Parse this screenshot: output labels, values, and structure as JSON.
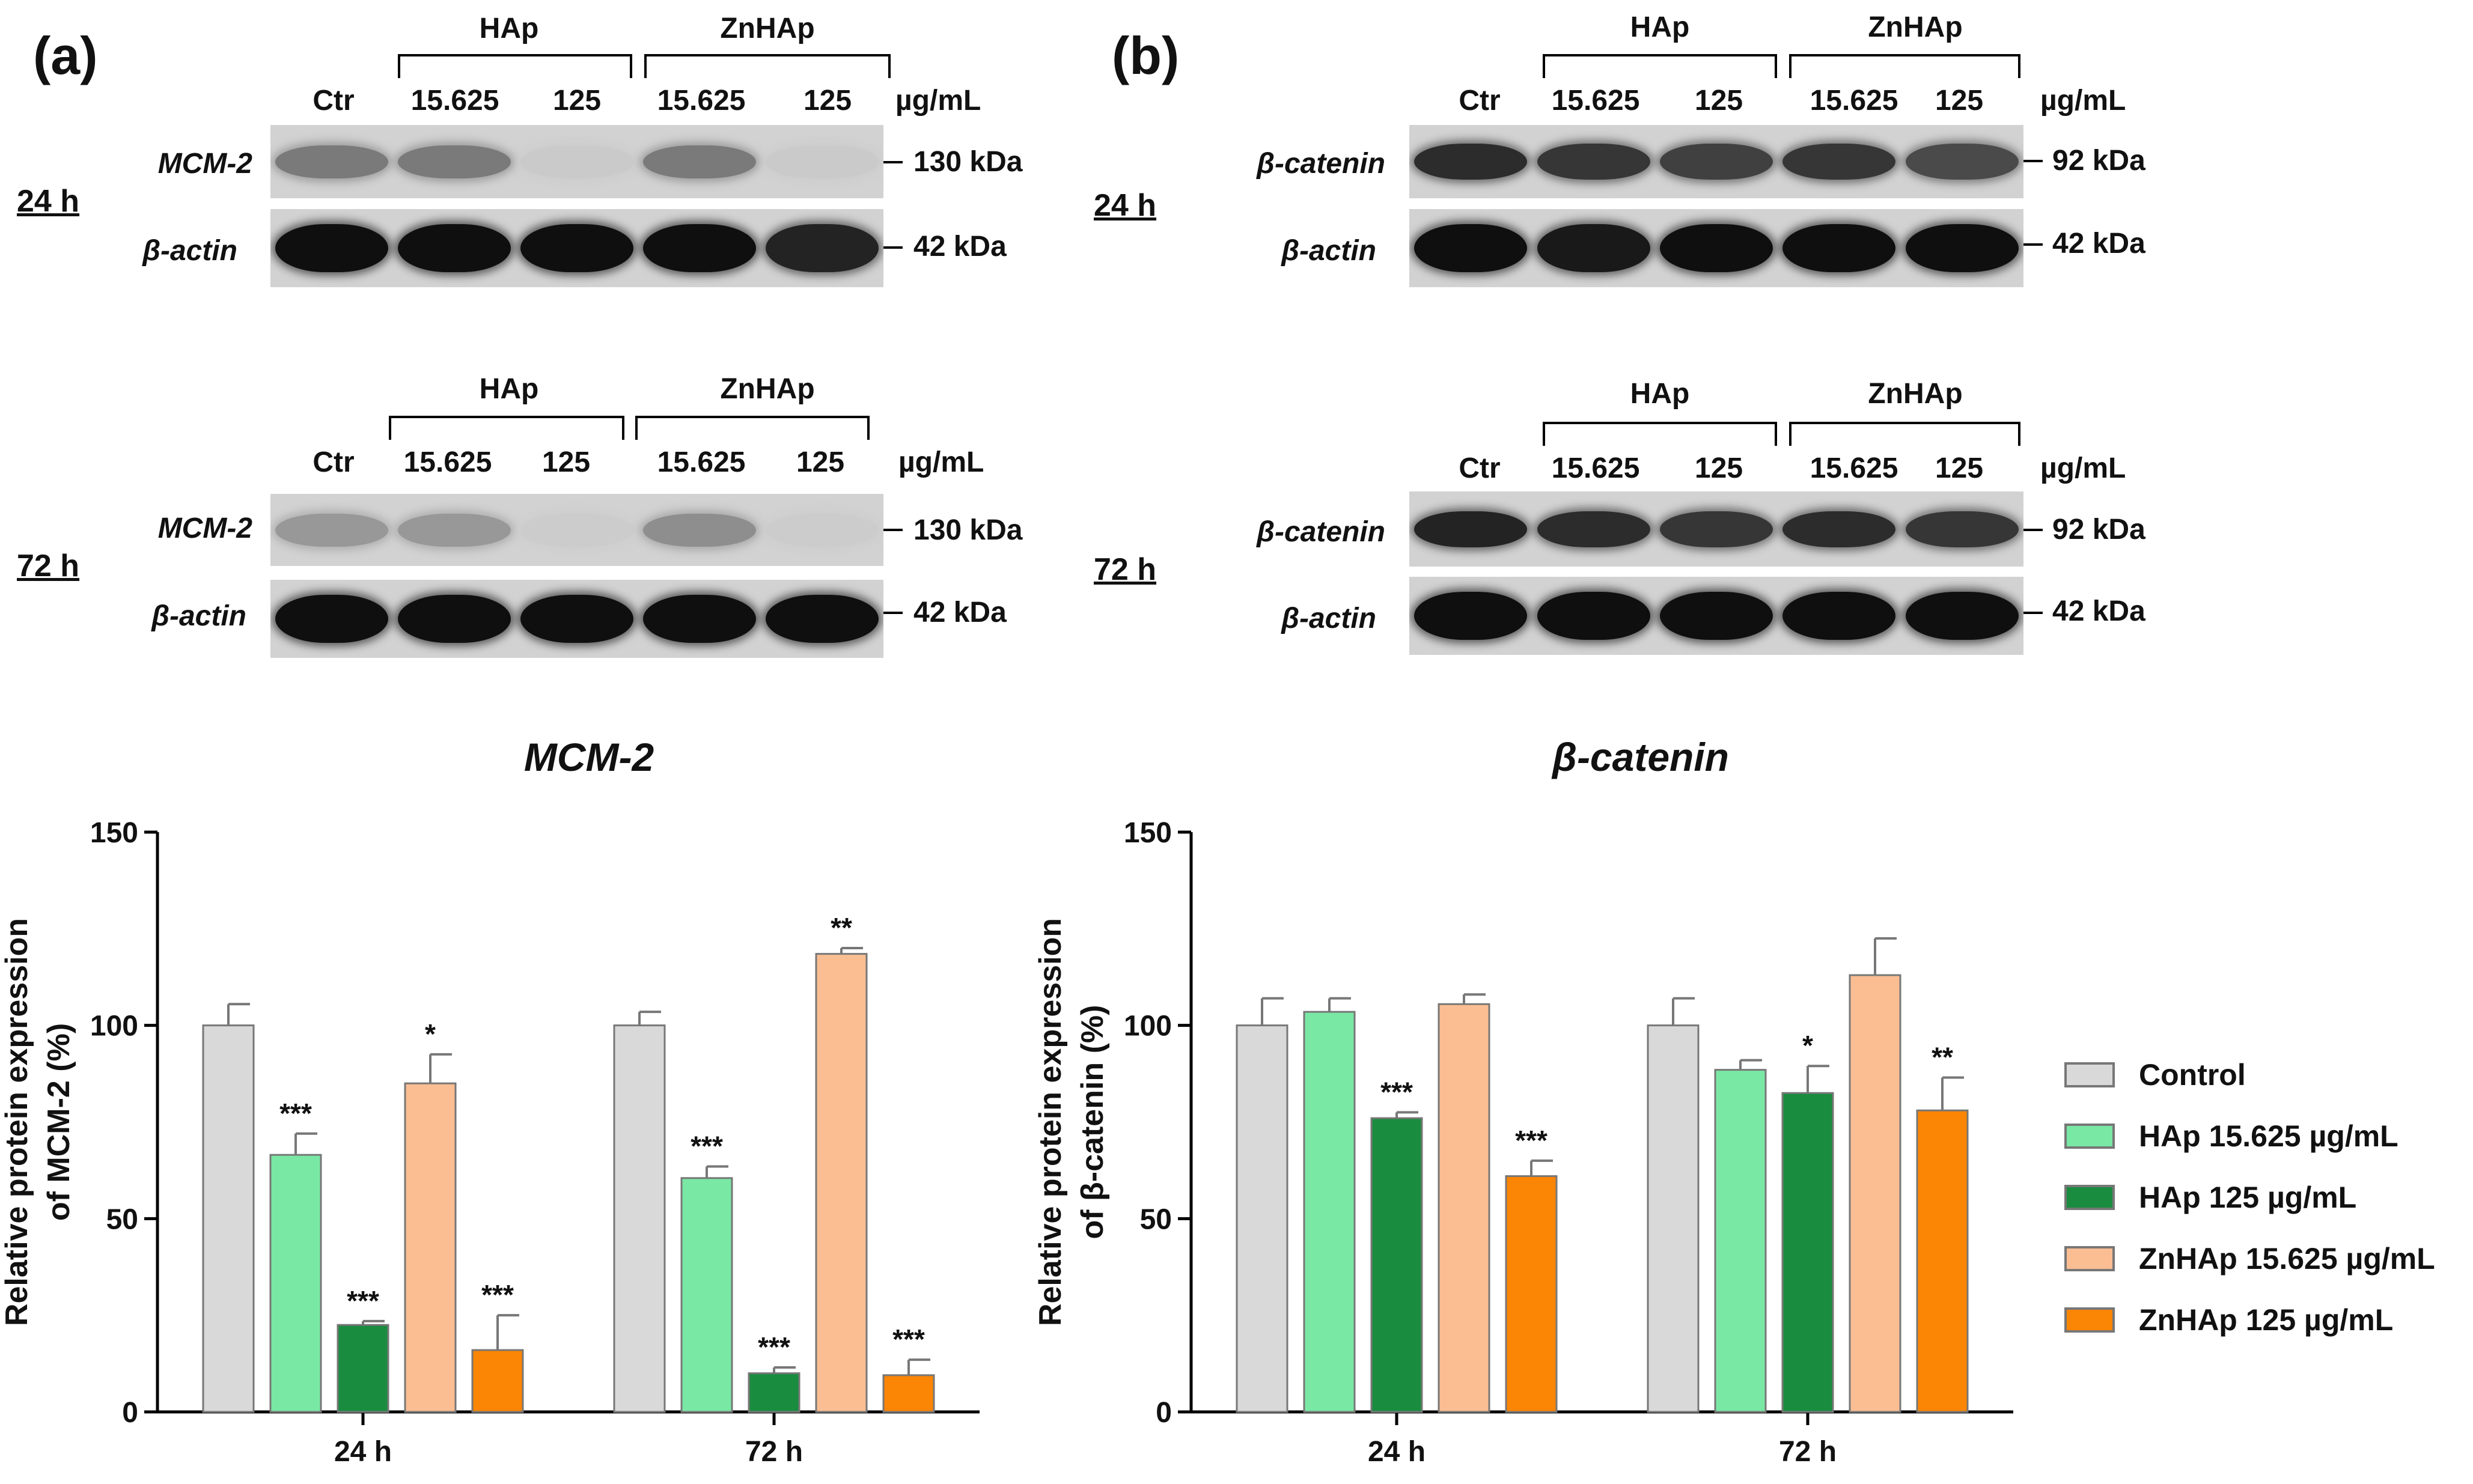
{
  "panels": [
    {
      "label": "(a)",
      "lane_labels": [
        "Ctr",
        "15.625",
        "125",
        "15.625",
        "125"
      ],
      "groups": [
        "HAp",
        "ZnHAp"
      ],
      "unit": "µg/mL",
      "blot_sets": [
        {
          "time": "24 h",
          "target": "MCM-2",
          "target_kda": "130 kDa",
          "loading": "β-actin",
          "loading_kda": "42 kDa",
          "target_intensity": [
            0.45,
            0.45,
            0.04,
            0.45,
            0.04
          ],
          "loading_intensity": [
            1.0,
            1.0,
            1.0,
            1.0,
            0.9
          ]
        },
        {
          "time": "72 h",
          "target": "MCM-2",
          "target_kda": "130 kDa",
          "loading": "β-actin",
          "loading_kda": "42 kDa",
          "target_intensity": [
            0.3,
            0.3,
            0.03,
            0.35,
            0.03
          ],
          "loading_intensity": [
            1.0,
            1.0,
            1.0,
            1.0,
            1.0
          ]
        }
      ]
    },
    {
      "label": "(b)",
      "lane_labels": [
        "Ctr",
        "15.625",
        "125",
        "15.625",
        "125"
      ],
      "groups": [
        "HAp",
        "ZnHAp"
      ],
      "unit": "µg/mL",
      "blot_sets": [
        {
          "time": "24 h",
          "target": "β-catenin",
          "target_kda": "92 kDa",
          "loading": "β-actin",
          "loading_kda": "42 kDa",
          "target_intensity": [
            0.85,
            0.8,
            0.75,
            0.8,
            0.7
          ],
          "loading_intensity": [
            1.0,
            0.95,
            1.0,
            1.0,
            1.0
          ]
        },
        {
          "time": "72 h",
          "target": "β-catenin",
          "target_kda": "92 kDa",
          "loading": "β-actin",
          "loading_kda": "42 kDa",
          "target_intensity": [
            0.9,
            0.85,
            0.8,
            0.85,
            0.8
          ],
          "loading_intensity": [
            1.0,
            1.0,
            1.0,
            1.0,
            1.0
          ]
        }
      ]
    }
  ],
  "chart_data": [
    {
      "type": "bar",
      "title": "MCM-2",
      "ylabel_lines": [
        "Relative protein expression",
        "of MCM-2 (%)"
      ],
      "xlabel": "",
      "categories": [
        "24 h",
        "72 h"
      ],
      "ylim": [
        0,
        150
      ],
      "yticks": [
        0,
        50,
        100,
        150
      ],
      "series": [
        {
          "name": "Control",
          "values": [
            100,
            100
          ],
          "errors": [
            5.5,
            3.5
          ],
          "sig": [
            "",
            ""
          ]
        },
        {
          "name": "HAp 15.625 µg/mL",
          "values": [
            66.5,
            60.5
          ],
          "errors": [
            5.5,
            3
          ],
          "sig": [
            "***",
            "***"
          ]
        },
        {
          "name": "HAp 125 µg/mL",
          "values": [
            22.5,
            10
          ],
          "errors": [
            1,
            1.5
          ],
          "sig": [
            "***",
            "***"
          ]
        },
        {
          "name": "ZnHAp 15.625 µg/mL",
          "values": [
            85,
            118.5
          ],
          "errors": [
            7.5,
            1.5
          ],
          "sig": [
            "*",
            "**"
          ]
        },
        {
          "name": "ZnHAp 125 µg/mL",
          "values": [
            16,
            9.5
          ],
          "errors": [
            9,
            4
          ],
          "sig": [
            "***",
            "***"
          ]
        }
      ]
    },
    {
      "type": "bar",
      "title": "β-catenin",
      "ylabel_lines": [
        "Relative protein expression",
        "of β-catenin (%)"
      ],
      "xlabel": "",
      "categories": [
        "24 h",
        "72 h"
      ],
      "ylim": [
        0,
        150
      ],
      "yticks": [
        0,
        50,
        100,
        150
      ],
      "series": [
        {
          "name": "Control",
          "values": [
            100,
            100
          ],
          "errors": [
            7,
            7
          ],
          "sig": [
            "",
            ""
          ]
        },
        {
          "name": "HAp 15.625 µg/mL",
          "values": [
            103.5,
            88.5
          ],
          "errors": [
            3.5,
            2.5
          ],
          "sig": [
            "",
            ""
          ]
        },
        {
          "name": "HAp 125 µg/mL",
          "values": [
            76,
            82.5
          ],
          "errors": [
            1.5,
            7
          ],
          "sig": [
            "***",
            "*"
          ]
        },
        {
          "name": "ZnHAp 15.625 µg/mL",
          "values": [
            105.5,
            113
          ],
          "errors": [
            2.5,
            9.5
          ],
          "sig": [
            "",
            ""
          ]
        },
        {
          "name": "ZnHAp 125 µg/mL",
          "values": [
            61,
            78
          ],
          "errors": [
            4,
            8.5
          ],
          "sig": [
            "***",
            "**"
          ]
        }
      ]
    }
  ],
  "legend": [
    {
      "label": "Control",
      "color": "#d9d9d9"
    },
    {
      "label": "HAp 15.625 µg/mL",
      "color": "#7ae8a5"
    },
    {
      "label": "HAp 125 µg/mL",
      "color": "#1a8c3f"
    },
    {
      "label": "ZnHAp 15.625 µg/mL",
      "color": "#fbbe93"
    },
    {
      "label": "ZnHAp 125 µg/mL",
      "color": "#fb8504"
    }
  ],
  "colors": {
    "axis": "#000000",
    "error": "#777777"
  }
}
